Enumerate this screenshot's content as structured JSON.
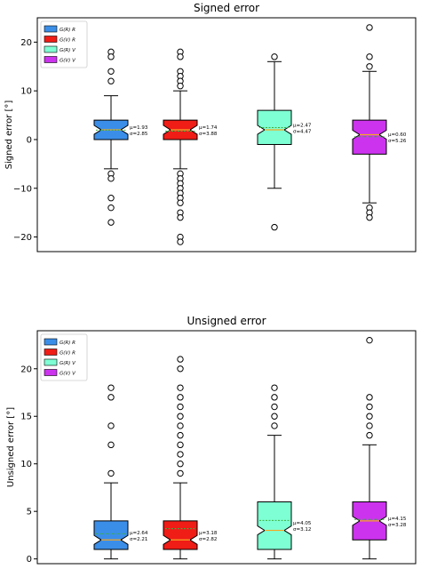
{
  "chart_data": [
    {
      "type": "box",
      "title": "Signed error",
      "xlabel": "",
      "ylabel": "Signed error [°]",
      "ylim": [
        -23,
        25
      ],
      "yticks": [
        -20,
        -10,
        0,
        10,
        20
      ],
      "grid": false,
      "notched": true,
      "legend_position": "top-left",
      "series": [
        {
          "name": "G(R) R",
          "color": "#3b8ee8",
          "whislo": -6,
          "q1": 0,
          "med": 2,
          "mean": 1.93,
          "q3": 4,
          "whishi": 9,
          "fliers": [
            18,
            17,
            14,
            12,
            -7,
            -8,
            -12,
            -14,
            -17
          ],
          "stat_mu": "μ=1.93",
          "stat_sigma": "σ=2.85"
        },
        {
          "name": "G(V) R",
          "color": "#f01c16",
          "whislo": -6,
          "q1": 0,
          "med": 2,
          "mean": 1.74,
          "q3": 4,
          "whishi": 10,
          "fliers": [
            18,
            17,
            14,
            13,
            12,
            11,
            -7,
            -8,
            -9,
            -10,
            -11,
            -12,
            -13,
            -15,
            -16,
            -20,
            -21
          ],
          "stat_mu": "μ=1.74",
          "stat_sigma": "σ=3.88"
        },
        {
          "name": "G(R) V",
          "color": "#7fffd4",
          "whislo": -10,
          "q1": -1,
          "med": 2,
          "mean": 2.47,
          "q3": 6,
          "whishi": 16,
          "fliers": [
            17,
            -18
          ],
          "stat_mu": "μ=2.47",
          "stat_sigma": "σ=4.47"
        },
        {
          "name": "G(V) V",
          "color": "#cc33ee",
          "whislo": -13,
          "q1": -3,
          "med": 1,
          "mean": 0.6,
          "q3": 4,
          "whishi": 14,
          "fliers": [
            23,
            17,
            15,
            -14,
            -15,
            -16
          ],
          "stat_mu": "μ=0.60",
          "stat_sigma": "σ=5.26"
        }
      ]
    },
    {
      "type": "box",
      "title": "Unsigned error",
      "xlabel": "",
      "ylabel": "Unsigned error [°]",
      "ylim": [
        -0.5,
        24
      ],
      "yticks": [
        0,
        5,
        10,
        15,
        20
      ],
      "grid": false,
      "notched": true,
      "legend_position": "top-left",
      "series": [
        {
          "name": "G(R) R",
          "color": "#3b8ee8",
          "whislo": 0,
          "q1": 1,
          "med": 2,
          "mean": 2.64,
          "q3": 4,
          "whishi": 8,
          "fliers": [
            9,
            12,
            14,
            17,
            18
          ],
          "stat_mu": "μ=2.64",
          "stat_sigma": "σ=2.21"
        },
        {
          "name": "G(V) R",
          "color": "#f01c16",
          "whislo": 0,
          "q1": 1,
          "med": 2,
          "mean": 3.18,
          "q3": 4,
          "whishi": 8,
          "fliers": [
            9,
            10,
            11,
            12,
            13,
            14,
            15,
            16,
            17,
            18,
            20,
            21
          ],
          "stat_mu": "μ=3.18",
          "stat_sigma": "σ=2.82"
        },
        {
          "name": "G(R) V",
          "color": "#7fffd4",
          "whislo": 0,
          "q1": 1,
          "med": 3,
          "mean": 4.05,
          "q3": 6,
          "whishi": 13,
          "fliers": [
            14,
            15,
            16,
            17,
            18
          ],
          "stat_mu": "μ=4.05",
          "stat_sigma": "σ=3.12"
        },
        {
          "name": "G(V) V",
          "color": "#cc33ee",
          "whislo": 0,
          "q1": 2,
          "med": 4,
          "mean": 4.15,
          "q3": 6,
          "whishi": 12,
          "fliers": [
            13,
            14,
            15,
            16,
            17,
            23
          ],
          "stat_mu": "μ=4.15",
          "stat_sigma": "σ=3.28"
        }
      ]
    }
  ]
}
